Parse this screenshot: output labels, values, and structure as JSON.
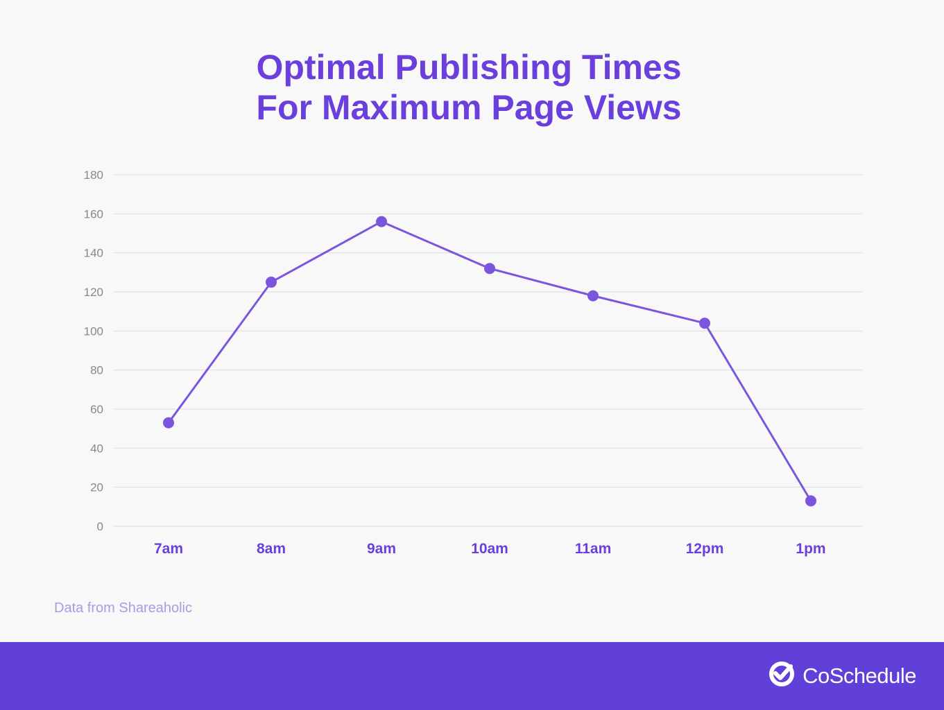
{
  "title": {
    "line1": "Optimal Publishing Times",
    "line2": "For Maximum Page Views"
  },
  "source": "Data from Shareaholic",
  "brand": {
    "name": "CoSchedule",
    "icon": "check-circle-icon"
  },
  "colors": {
    "background": "#f8f8f8",
    "title": "#6a3fdc",
    "line": "#7b55dd",
    "marker": "#7b55dd",
    "x_tick": "#6a3fdc",
    "y_tick": "#888888",
    "grid": "#dddddd",
    "footer": "#6040d8",
    "source": "#a99ae6"
  },
  "chart_data": {
    "type": "line",
    "title": "Optimal Publishing Times For Maximum Page Views",
    "xlabel": "",
    "ylabel": "",
    "categories": [
      "7am",
      "8am",
      "9am",
      "10am",
      "11am",
      "12pm",
      "1pm"
    ],
    "series": [
      {
        "values": [
          53,
          125,
          156,
          132,
          118,
          104,
          13
        ]
      }
    ],
    "ylim": [
      0,
      180
    ],
    "yticks": [
      0,
      20,
      40,
      60,
      80,
      100,
      120,
      140,
      160,
      180
    ],
    "grid": true,
    "legend": "none"
  }
}
